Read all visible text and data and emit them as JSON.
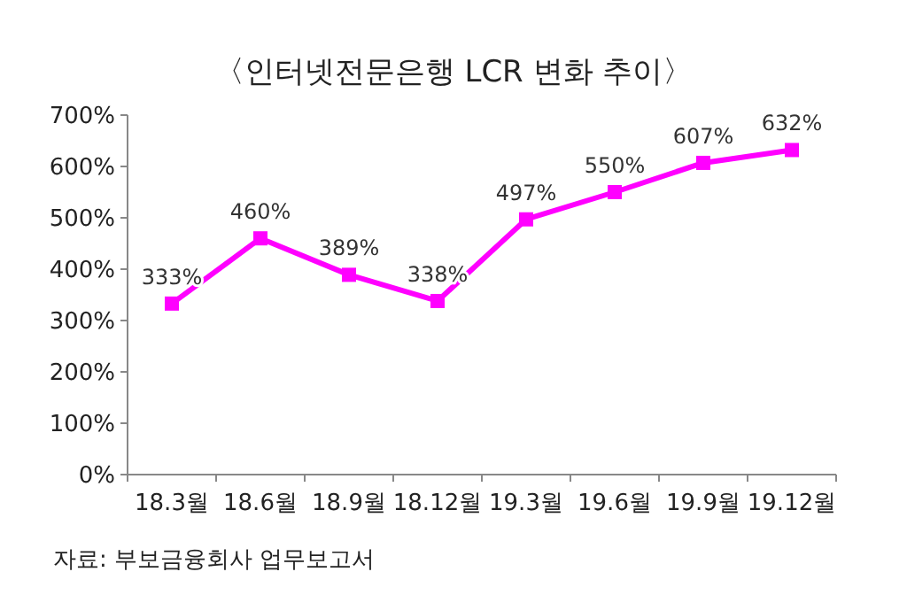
{
  "chart_data": {
    "type": "line",
    "title": "〈인터넷전문은행 LCR 변화 추이〉",
    "categories": [
      "18.3월",
      "18.6월",
      "18.9월",
      "18.12월",
      "19.3월",
      "19.6월",
      "19.9월",
      "19.12월"
    ],
    "values": [
      333,
      460,
      389,
      338,
      497,
      550,
      607,
      632
    ],
    "value_labels": [
      "333%",
      "460%",
      "389%",
      "338%",
      "497%",
      "550%",
      "607%",
      "632%"
    ],
    "color": "#ff00ff",
    "marker": "square",
    "line_style": "solid",
    "grid": false,
    "ylim": [
      0,
      700
    ],
    "yticks": [
      {
        "value": 0,
        "label": "0%"
      },
      {
        "value": 100,
        "label": "100%"
      },
      {
        "value": 200,
        "label": "200%"
      },
      {
        "value": 300,
        "label": "300%"
      },
      {
        "value": 400,
        "label": "400%"
      },
      {
        "value": 500,
        "label": "500%"
      },
      {
        "value": 600,
        "label": "600%"
      },
      {
        "value": 700,
        "label": "700%"
      }
    ],
    "annotations": [
      "자료: 부보금융회사 업무보고서"
    ]
  }
}
